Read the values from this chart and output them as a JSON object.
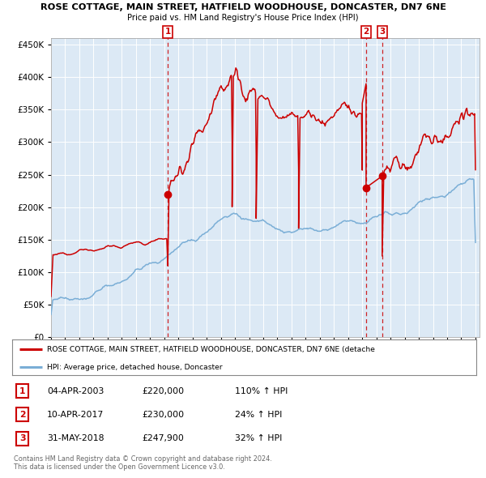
{
  "title1": "ROSE COTTAGE, MAIN STREET, HATFIELD WOODHOUSE, DONCASTER, DN7 6NE",
  "title2": "Price paid vs. HM Land Registry's House Price Index (HPI)",
  "legend_label_red": "ROSE COTTAGE, MAIN STREET, HATFIELD WOODHOUSE, DONCASTER, DN7 6NE (detache",
  "legend_label_blue": "HPI: Average price, detached house, Doncaster",
  "transactions": [
    {
      "num": "1",
      "date": "04-APR-2003",
      "year": 2003.25,
      "price": 220000,
      "pct": "110% ↑ HPI"
    },
    {
      "num": "2",
      "date": "10-APR-2017",
      "year": 2017.27,
      "price": 230000,
      "pct": "24% ↑ HPI"
    },
    {
      "num": "3",
      "date": "31-MAY-2018",
      "year": 2018.41,
      "price": 247900,
      "pct": "32% ↑ HPI"
    }
  ],
  "footnote1": "Contains HM Land Registry data © Crown copyright and database right 2024.",
  "footnote2": "This data is licensed under the Open Government Licence v3.0.",
  "plot_bg": "#dce9f5",
  "red_color": "#cc0000",
  "blue_color": "#7aaed6",
  "ylim": [
    0,
    460000
  ],
  "xlim_start": 1995.0,
  "xlim_end": 2025.3
}
